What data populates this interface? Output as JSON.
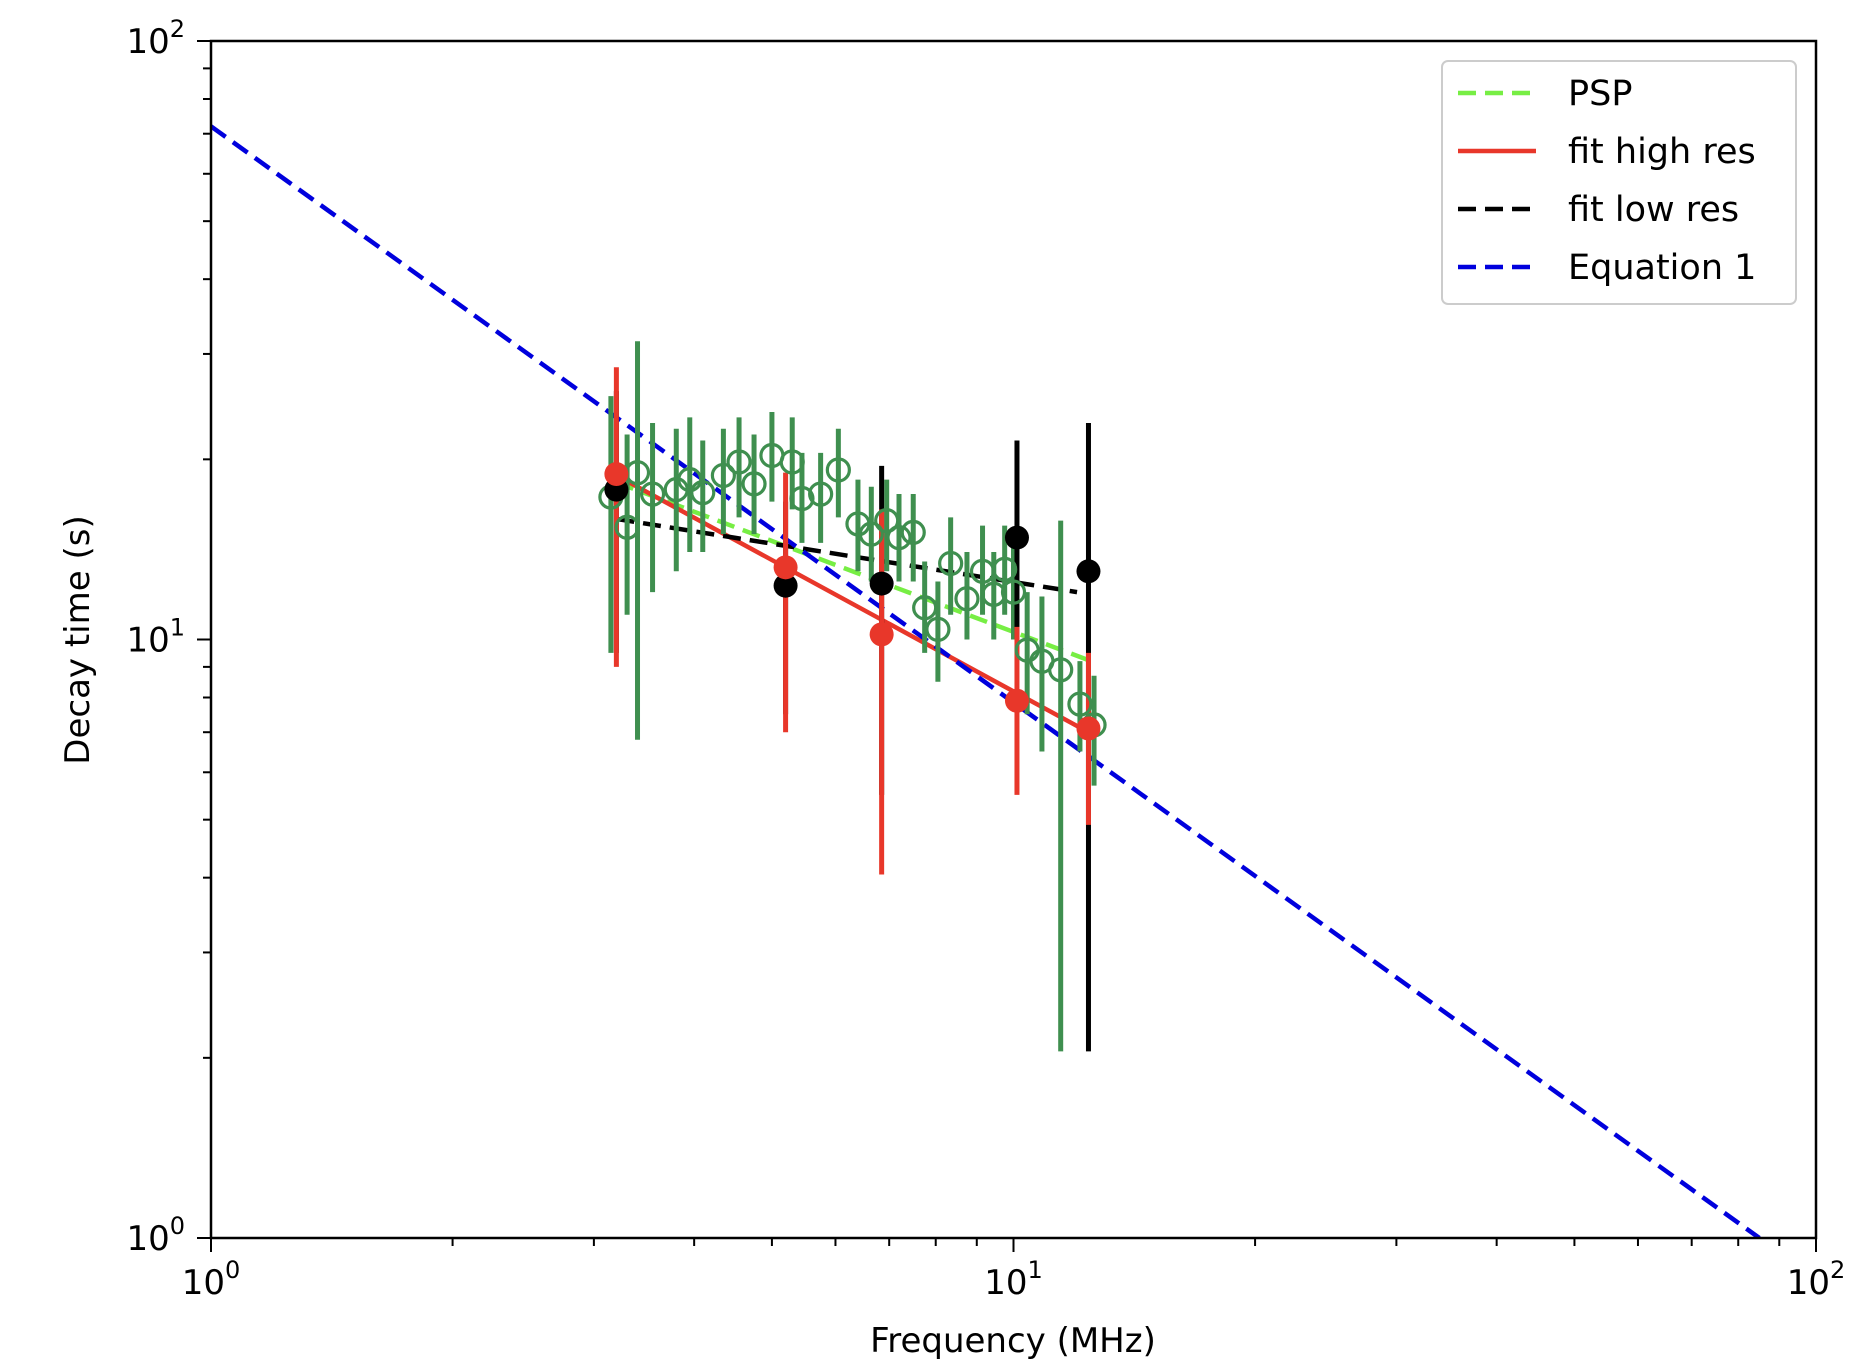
{
  "chart_data": {
    "type": "scatter",
    "xscale": "log",
    "yscale": "log",
    "xlabel": "Frequency (MHz)",
    "ylabel": "Decay time (s)",
    "xlim": [
      1,
      100
    ],
    "ylim": [
      1,
      100
    ],
    "x_ticks": [
      {
        "value": 1,
        "base": "10",
        "exp": "0"
      },
      {
        "value": 10,
        "base": "10",
        "exp": "1"
      },
      {
        "value": 100,
        "base": "10",
        "exp": "2"
      }
    ],
    "y_ticks": [
      {
        "value": 1,
        "base": "10",
        "exp": "0"
      },
      {
        "value": 10,
        "base": "10",
        "exp": "1"
      },
      {
        "value": 100,
        "base": "10",
        "exp": "2"
      }
    ],
    "legend_position": "top-right",
    "series": [
      {
        "name": "PSP",
        "kind": "points-open",
        "color": "#3f8f4f",
        "points": [
          {
            "x": 3.15,
            "y": 17.3,
            "lo": 9.5,
            "hi": 25.5
          },
          {
            "x": 3.3,
            "y": 15.4,
            "lo": 11.0,
            "hi": 22.0
          },
          {
            "x": 3.4,
            "y": 19.0,
            "lo": 6.8,
            "hi": 31.5
          },
          {
            "x": 3.55,
            "y": 17.5,
            "lo": 12.0,
            "hi": 23.0
          },
          {
            "x": 3.8,
            "y": 17.8,
            "lo": 13.0,
            "hi": 22.5
          },
          {
            "x": 3.95,
            "y": 18.5,
            "lo": 14.0,
            "hi": 23.5
          },
          {
            "x": 4.1,
            "y": 17.6,
            "lo": 14.0,
            "hi": 21.5
          },
          {
            "x": 4.35,
            "y": 18.8,
            "lo": 15.0,
            "hi": 22.5
          },
          {
            "x": 4.55,
            "y": 19.8,
            "lo": 16.0,
            "hi": 23.5
          },
          {
            "x": 4.75,
            "y": 18.2,
            "lo": 15.0,
            "hi": 22.0
          },
          {
            "x": 5.0,
            "y": 20.3,
            "lo": 17.0,
            "hi": 24.0
          },
          {
            "x": 5.3,
            "y": 19.8,
            "lo": 16.5,
            "hi": 23.5
          },
          {
            "x": 5.45,
            "y": 17.2,
            "lo": 14.5,
            "hi": 20.5
          },
          {
            "x": 5.75,
            "y": 17.5,
            "lo": 14.5,
            "hi": 20.5
          },
          {
            "x": 6.05,
            "y": 19.2,
            "lo": 16.0,
            "hi": 22.5
          },
          {
            "x": 6.4,
            "y": 15.6,
            "lo": 13.0,
            "hi": 18.5
          },
          {
            "x": 6.65,
            "y": 15.0,
            "lo": 12.5,
            "hi": 18.0
          },
          {
            "x": 6.95,
            "y": 15.8,
            "lo": 13.0,
            "hi": 18.5
          },
          {
            "x": 7.2,
            "y": 14.8,
            "lo": 12.5,
            "hi": 17.5
          },
          {
            "x": 7.5,
            "y": 15.1,
            "lo": 12.5,
            "hi": 17.5
          },
          {
            "x": 7.75,
            "y": 11.3,
            "lo": 9.5,
            "hi": 13.5
          },
          {
            "x": 8.05,
            "y": 10.4,
            "lo": 8.5,
            "hi": 12.5
          },
          {
            "x": 8.35,
            "y": 13.4,
            "lo": 11.0,
            "hi": 16.0
          },
          {
            "x": 8.75,
            "y": 11.7,
            "lo": 10.0,
            "hi": 14.0
          },
          {
            "x": 9.15,
            "y": 13.0,
            "lo": 11.0,
            "hi": 15.5
          },
          {
            "x": 9.45,
            "y": 11.9,
            "lo": 10.0,
            "hi": 14.0
          },
          {
            "x": 9.75,
            "y": 13.1,
            "lo": 11.0,
            "hi": 15.5
          },
          {
            "x": 10.0,
            "y": 12.0,
            "lo": 10.0,
            "hi": 14.5
          },
          {
            "x": 10.4,
            "y": 9.6,
            "lo": 7.5,
            "hi": 12.0
          },
          {
            "x": 10.85,
            "y": 9.2,
            "lo": 6.5,
            "hi": 11.8
          },
          {
            "x": 11.45,
            "y": 8.9,
            "lo": 2.05,
            "hi": 15.8
          },
          {
            "x": 12.1,
            "y": 7.8,
            "lo": 6.5,
            "hi": 9.2
          },
          {
            "x": 12.6,
            "y": 7.2,
            "lo": 5.7,
            "hi": 8.7
          }
        ]
      },
      {
        "name": "fit low res",
        "kind": "points-filled",
        "color": "#000000",
        "points": [
          {
            "x": 3.2,
            "y": 17.8,
            "lo": 9.5,
            "hi": 26.0
          },
          {
            "x": 5.2,
            "y": 12.3,
            "lo": 7.5,
            "hi": 17.0
          },
          {
            "x": 6.85,
            "y": 12.4,
            "lo": 5.5,
            "hi": 19.5
          },
          {
            "x": 10.1,
            "y": 14.8,
            "lo": 10.0,
            "hi": 21.5
          },
          {
            "x": 12.4,
            "y": 13.0,
            "lo": 2.05,
            "hi": 23.0
          }
        ]
      },
      {
        "name": "fit high res",
        "kind": "points-filled",
        "color": "#e8372a",
        "points": [
          {
            "x": 3.2,
            "y": 18.9,
            "lo": 9.0,
            "hi": 28.5
          },
          {
            "x": 5.2,
            "y": 13.2,
            "lo": 7.0,
            "hi": 19.0
          },
          {
            "x": 6.85,
            "y": 10.2,
            "lo": 4.05,
            "hi": 16.5
          },
          {
            "x": 10.1,
            "y": 7.9,
            "lo": 5.5,
            "hi": 10.5
          },
          {
            "x": 12.4,
            "y": 7.1,
            "lo": 4.9,
            "hi": 9.5
          }
        ]
      }
    ],
    "lines": [
      {
        "name": "PSP",
        "color": "#77ee44",
        "dash": "dashed",
        "x": [
          3.2,
          12.5
        ],
        "y": [
          18.3,
          9.2
        ]
      },
      {
        "name": "fit high res",
        "color": "#e8372a",
        "dash": "solid",
        "x": [
          3.2,
          12.4
        ],
        "y": [
          18.8,
          7.0
        ]
      },
      {
        "name": "fit low res",
        "color": "#000000",
        "dash": "dashed",
        "x": [
          3.2,
          12.0
        ],
        "y": [
          15.9,
          12.0
        ]
      },
      {
        "name": "Equation 1",
        "color": "#0000dd",
        "dash": "dashed",
        "x": [
          1.0,
          85.0
        ],
        "y": [
          72.0,
          1.0
        ]
      }
    ],
    "legend": [
      {
        "label": "PSP",
        "color": "#77ee44",
        "dash": "dashed"
      },
      {
        "label": "fit high res",
        "color": "#e8372a",
        "dash": "solid"
      },
      {
        "label": "fit low res",
        "color": "#000000",
        "dash": "dashed"
      },
      {
        "label": "Equation 1",
        "color": "#0000dd",
        "dash": "dashed"
      }
    ]
  }
}
